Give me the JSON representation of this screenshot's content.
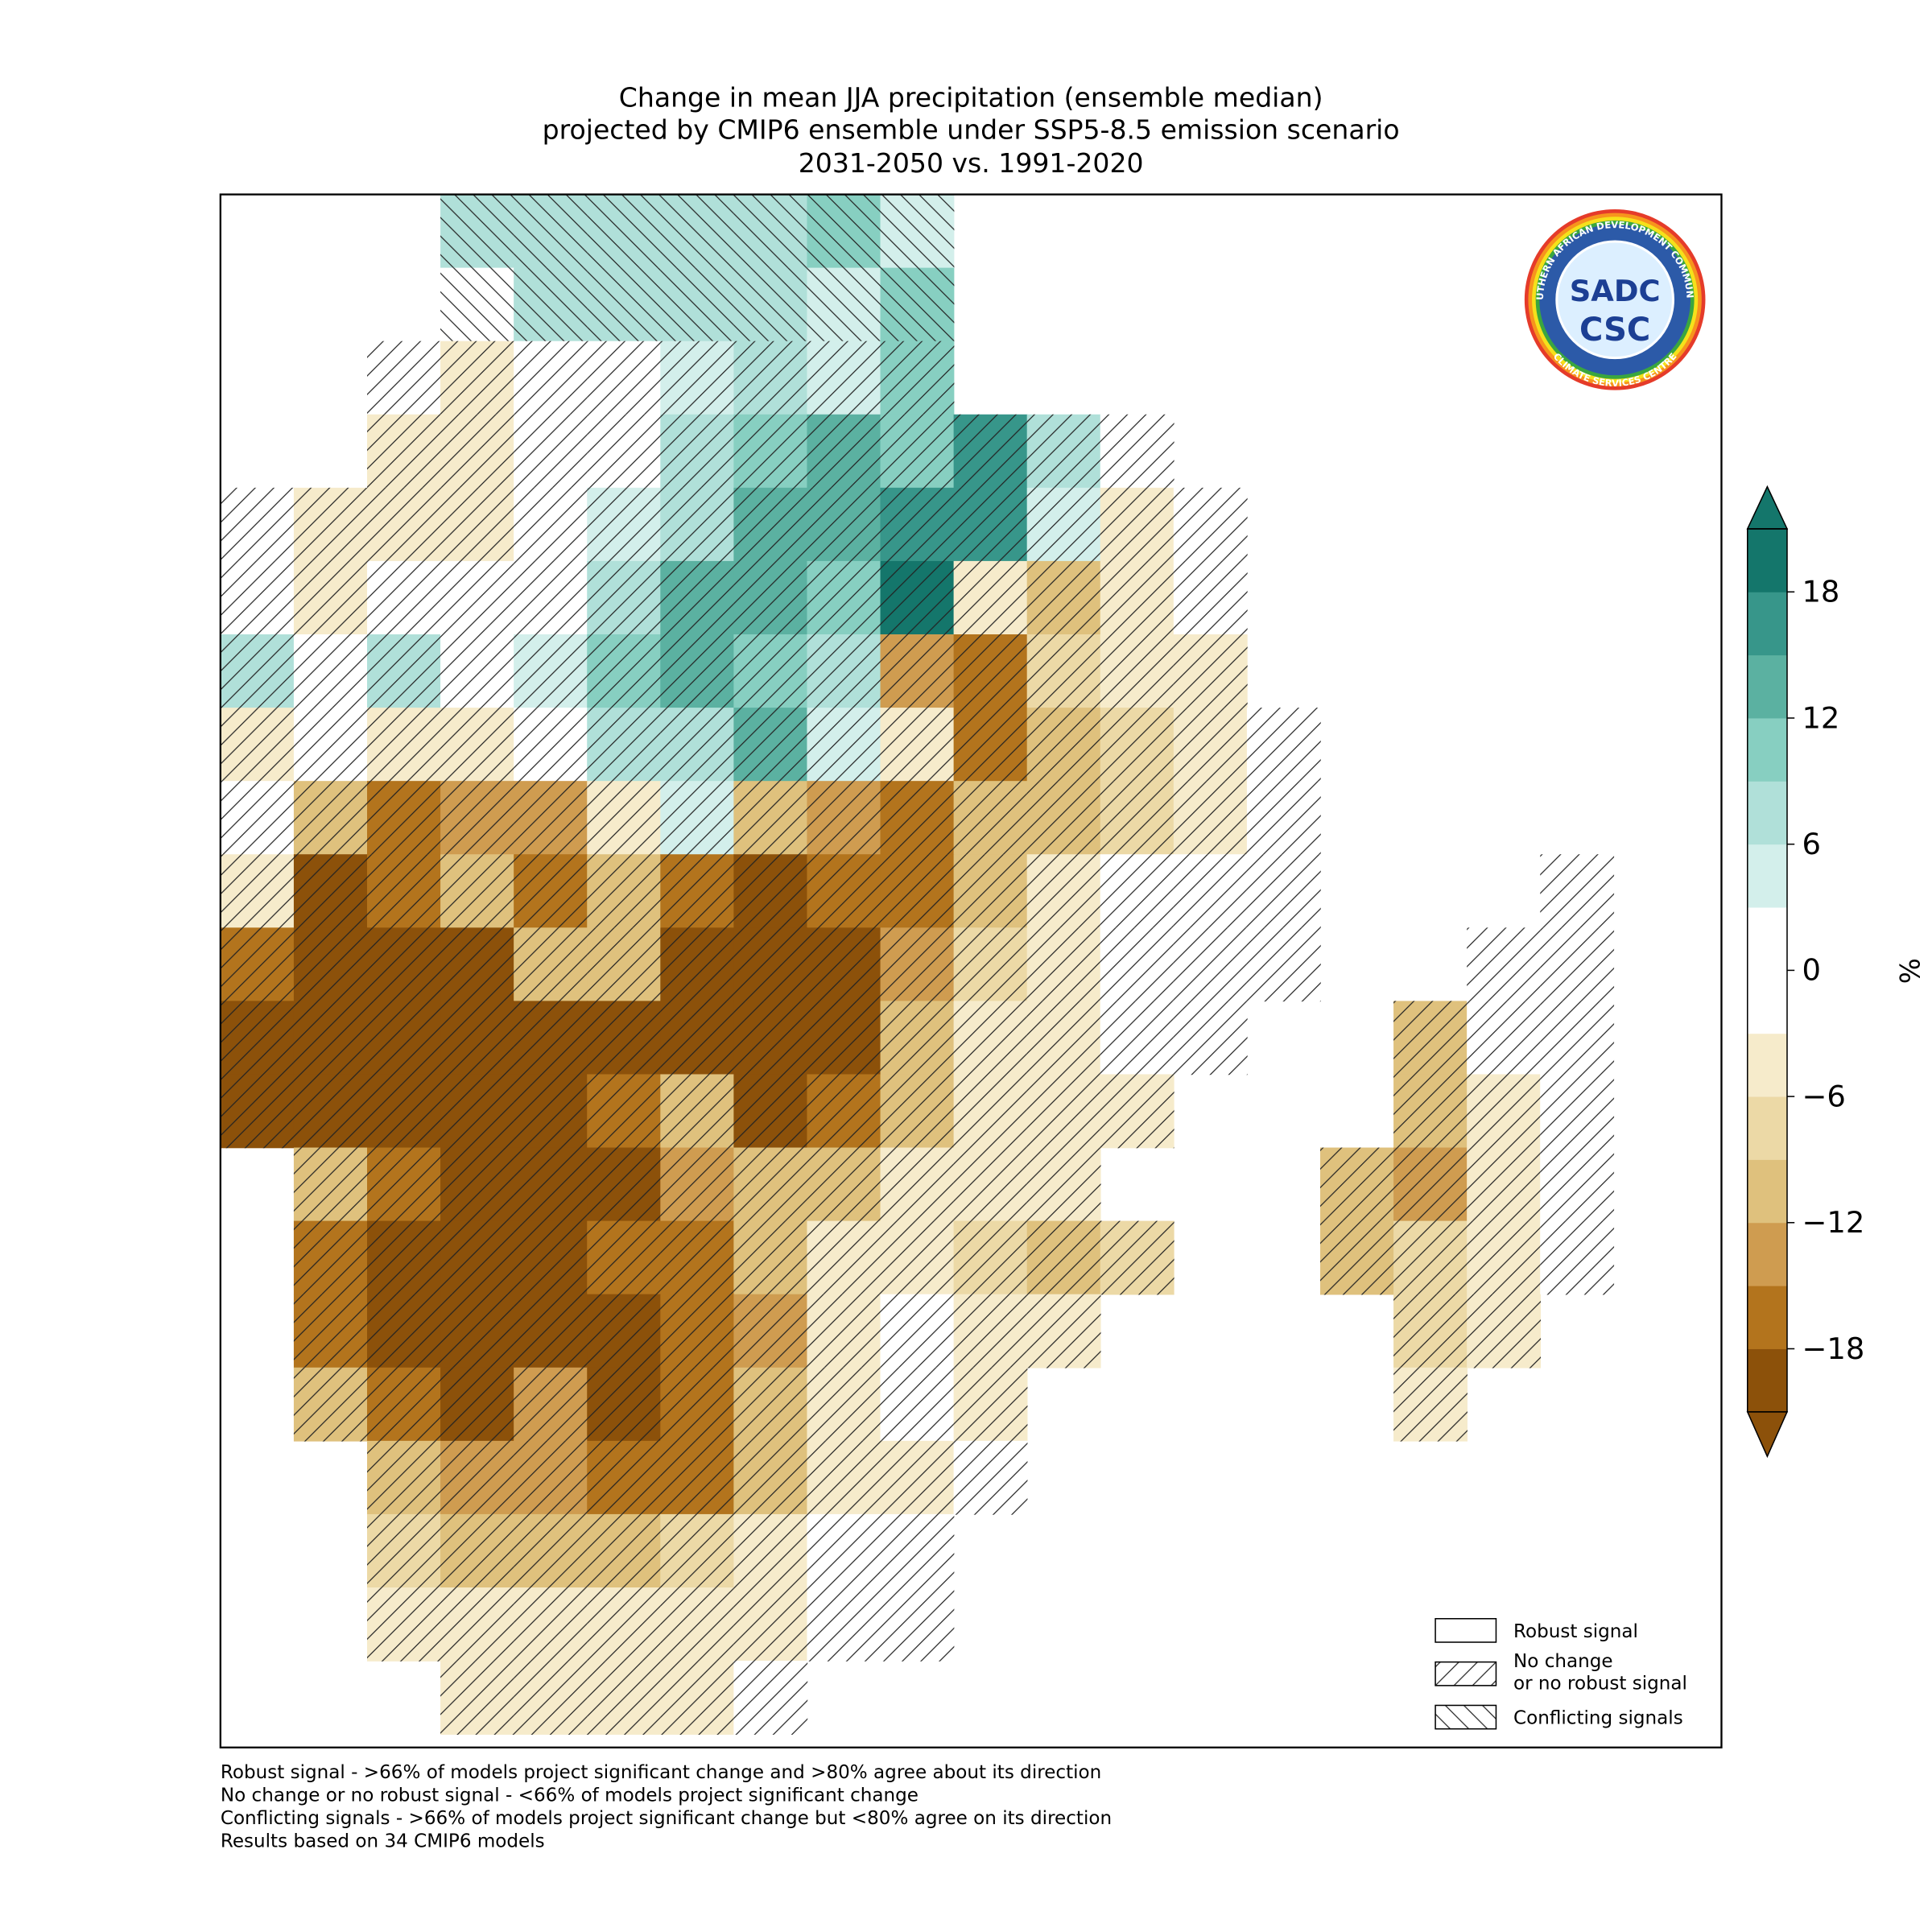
{
  "title": [
    "Change in mean JJA precipitation (ensemble median)",
    "projected by CMIP6 ensemble under SSP5-8.5 emission scenario",
    "2031-2050 vs. 1991-2020"
  ],
  "map": {
    "grid": [
      [
        null,
        null,
        null,
        6,
        8,
        8,
        8,
        8,
        9,
        5,
        null,
        null,
        null,
        null,
        null,
        null,
        null,
        null,
        null
      ],
      [
        null,
        null,
        null,
        0,
        7,
        8,
        8,
        8,
        4,
        9,
        null,
        null,
        null,
        null,
        null,
        null,
        null,
        null,
        null
      ],
      [
        null,
        null,
        -3,
        -5,
        -3,
        0,
        5,
        8,
        5,
        9,
        null,
        null,
        null,
        null,
        null,
        null,
        null,
        null,
        null
      ],
      [
        null,
        null,
        -4,
        -4,
        0,
        0,
        8,
        10,
        12,
        10,
        15,
        8,
        -2,
        null,
        null,
        null,
        null,
        null,
        null
      ],
      [
        -2,
        -4,
        -4,
        -4,
        0,
        5,
        8,
        12,
        12,
        16,
        16,
        5,
        -4,
        -1,
        null,
        null,
        null,
        null,
        null
      ],
      [
        -3,
        -4,
        0,
        0,
        0,
        6,
        12,
        13,
        10,
        18,
        -6,
        -10,
        -4,
        -2,
        null,
        null,
        null,
        null,
        null
      ],
      [
        8,
        -2,
        6,
        0,
        5,
        10,
        12,
        10,
        8,
        -14,
        -18,
        -8,
        -4,
        -4,
        null,
        null,
        null,
        null,
        null
      ],
      [
        -6,
        0,
        -5,
        -6,
        -3,
        8,
        8,
        13,
        5,
        -6,
        -18,
        -10,
        -8,
        -4,
        -3,
        null,
        null,
        null,
        null
      ],
      [
        -2,
        -12,
        -18,
        -14,
        -14,
        -6,
        3,
        -12,
        -14,
        -18,
        -12,
        -10,
        -8,
        -5,
        -3,
        null,
        null,
        null,
        null
      ],
      [
        -6,
        -20,
        -18,
        -10,
        -16,
        -10,
        -18,
        -20,
        -18,
        -16,
        -12,
        -6,
        -3,
        -3,
        -2,
        null,
        null,
        null,
        -3
      ],
      [
        -16,
        -20,
        -20,
        -20,
        -10,
        -12,
        -20,
        -20,
        -20,
        -14,
        -8,
        -4,
        0,
        -2,
        -2,
        null,
        null,
        -3,
        0
      ],
      [
        -20,
        -20,
        -20,
        -20,
        -20,
        -20,
        -20,
        -20,
        -20,
        -12,
        -6,
        -4,
        -3,
        -2,
        null,
        null,
        -10,
        0,
        0
      ],
      [
        -20,
        -20,
        -20,
        -20,
        -20,
        -18,
        -12,
        -20,
        -18,
        -10,
        -6,
        -6,
        -6,
        null,
        null,
        null,
        -12,
        -6,
        0
      ],
      [
        null,
        -12,
        -16,
        -20,
        -20,
        -20,
        -14,
        -12,
        -10,
        -6,
        -6,
        -6,
        null,
        null,
        null,
        -10,
        -14,
        -4,
        0
      ],
      [
        null,
        -16,
        -20,
        -20,
        -20,
        -18,
        -16,
        -12,
        -6,
        -4,
        -8,
        -10,
        -8,
        null,
        null,
        -10,
        -8,
        -4,
        -2
      ],
      [
        null,
        -16,
        -20,
        -20,
        -20,
        -20,
        -18,
        -14,
        -6,
        -2,
        -4,
        -6,
        null,
        null,
        null,
        null,
        -8,
        -4,
        null
      ],
      [
        null,
        -12,
        -18,
        -20,
        -14,
        -20,
        -16,
        -10,
        -6,
        0,
        -4,
        null,
        null,
        null,
        null,
        null,
        -6,
        null,
        null
      ],
      [
        null,
        null,
        -10,
        -14,
        -14,
        -18,
        -16,
        -10,
        -6,
        -4,
        -3,
        null,
        null,
        null,
        null,
        null,
        null,
        null,
        null
      ],
      [
        null,
        null,
        -8,
        -10,
        -10,
        -10,
        -8,
        -5,
        -3,
        -2,
        null,
        null,
        null,
        null,
        null,
        null,
        null,
        null,
        null
      ],
      [
        null,
        null,
        -6,
        -6,
        -5,
        -5,
        -4,
        -4,
        -2,
        -3,
        null,
        null,
        null,
        null,
        null,
        null,
        null,
        null,
        null
      ],
      [
        null,
        null,
        null,
        -6,
        -4,
        -5,
        -4,
        -3,
        null,
        null,
        null,
        null,
        null,
        null,
        null,
        null,
        null,
        null,
        null
      ]
    ]
  },
  "colorbar": {
    "label": "%",
    "extend": "both",
    "levels": [
      -21,
      -18,
      -15,
      -12,
      -9,
      -6,
      -3,
      0,
      3,
      6,
      9,
      12,
      15,
      18,
      21
    ],
    "colors": [
      "#8c510a",
      "#b3741d",
      "#cf9c50",
      "#dfc17d",
      "#ecd9a6",
      "#f6ebcb",
      "#ffffff",
      "#ffffff",
      "#d3efeb",
      "#b0e0d9",
      "#87cfc1",
      "#5bb1a1",
      "#37968a",
      "#14766b"
    ],
    "ticks": [
      {
        "value": -18,
        "label": "−18"
      },
      {
        "value": -12,
        "label": "−12"
      },
      {
        "value": -6,
        "label": "−6"
      },
      0,
      6,
      12,
      18
    ]
  },
  "legend": {
    "items": [
      {
        "label": [
          "Robust signal"
        ],
        "hatch": "none"
      },
      {
        "label": [
          "No change",
          "or no robust signal"
        ],
        "hatch": "/"
      },
      {
        "label": [
          "Conflicting signals"
        ],
        "hatch": "\\"
      }
    ]
  },
  "notes": [
    "Robust signal - >66% of models project significant change and >80% agree about its direction",
    "No change or no robust signal - <66% of models project significant change",
    "Conflicting signals - >66% of models project significant change but <80% agree on its direction",
    "Results based on 34 CMIP6 models"
  ],
  "logo": {
    "top": "SOUTHERN AFRICAN DEVELOPMENT COMMUNITY",
    "bottom": "CLIMATE SERVICES CENTRE",
    "mark": "SADC",
    "sub": "CSC"
  }
}
